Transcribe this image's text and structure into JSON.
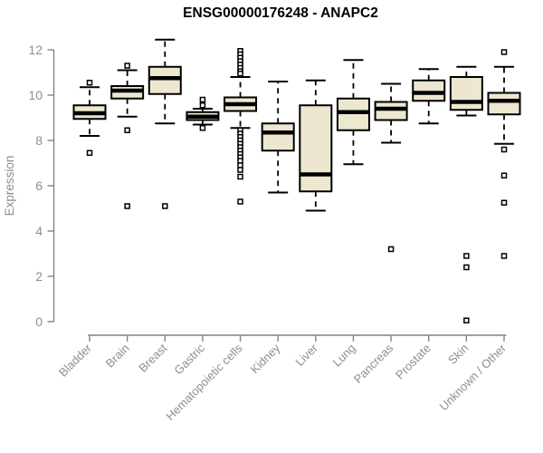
{
  "chart_data": {
    "type": "boxplot",
    "title": "ENSG00000176248 - ANAPC2",
    "ylabel": "Expression",
    "xlabel": "",
    "ylim": [
      0,
      12.5
    ],
    "yticks": [
      0,
      2,
      4,
      6,
      8,
      10,
      12
    ],
    "grid": false,
    "legend": "none",
    "categories": [
      "Bladder",
      "Brain",
      "Breast",
      "Gastric",
      "Hematopoietic cells",
      "Kidney",
      "Liver",
      "Lung",
      "Pancreas",
      "Prostate",
      "Skin",
      "Unknown / Other"
    ],
    "series": [
      {
        "category": "Bladder",
        "whisker_low": 8.2,
        "q1": 8.95,
        "median": 9.2,
        "q3": 9.55,
        "whisker_high": 10.35,
        "outliers": [
          10.55,
          7.45
        ]
      },
      {
        "category": "Brain",
        "whisker_low": 9.05,
        "q1": 9.85,
        "median": 10.2,
        "q3": 10.4,
        "whisker_high": 11.1,
        "outliers": [
          11.3,
          8.45,
          5.1
        ]
      },
      {
        "category": "Breast",
        "whisker_low": 8.75,
        "q1": 10.05,
        "median": 10.75,
        "q3": 11.25,
        "whisker_high": 12.45,
        "outliers": [
          5.1
        ]
      },
      {
        "category": "Gastric",
        "whisker_low": 8.7,
        "q1": 8.9,
        "median": 9.05,
        "q3": 9.25,
        "whisker_high": 9.4,
        "outliers": [
          9.8,
          9.55,
          8.55
        ]
      },
      {
        "category": "Hematopoietic cells",
        "whisker_low": 8.55,
        "q1": 9.3,
        "median": 9.6,
        "q3": 9.9,
        "whisker_high": 10.8,
        "outliers": [
          11.95,
          11.8,
          11.65,
          11.5,
          11.35,
          11.2,
          11.05,
          10.95,
          8.45,
          8.3,
          8.15,
          8.0,
          7.85,
          7.7,
          7.55,
          7.4,
          7.25,
          7.1,
          6.9,
          6.7,
          6.4,
          5.3
        ]
      },
      {
        "category": "Kidney",
        "whisker_low": 5.7,
        "q1": 7.55,
        "median": 8.35,
        "q3": 8.75,
        "whisker_high": 10.6,
        "outliers": []
      },
      {
        "category": "Liver",
        "whisker_low": 4.9,
        "q1": 5.75,
        "median": 6.5,
        "q3": 9.55,
        "whisker_high": 10.65,
        "outliers": []
      },
      {
        "category": "Lung",
        "whisker_low": 6.95,
        "q1": 8.45,
        "median": 9.25,
        "q3": 9.85,
        "whisker_high": 11.55,
        "outliers": []
      },
      {
        "category": "Pancreas",
        "whisker_low": 7.9,
        "q1": 8.9,
        "median": 9.4,
        "q3": 9.7,
        "whisker_high": 10.5,
        "outliers": [
          3.2
        ]
      },
      {
        "category": "Prostate",
        "whisker_low": 8.75,
        "q1": 9.75,
        "median": 10.1,
        "q3": 10.65,
        "whisker_high": 11.15,
        "outliers": []
      },
      {
        "category": "Skin",
        "whisker_low": 9.1,
        "q1": 9.35,
        "median": 9.7,
        "q3": 10.8,
        "whisker_high": 11.25,
        "outliers": [
          2.9,
          2.4,
          0.05
        ]
      },
      {
        "category": "Unknown / Other",
        "whisker_low": 7.85,
        "q1": 9.15,
        "median": 9.75,
        "q3": 10.1,
        "whisker_high": 11.25,
        "outliers": [
          11.9,
          7.6,
          6.45,
          5.25,
          2.9
        ]
      }
    ],
    "colors": {
      "box_fill": "#EDE7D0",
      "box_stroke": "#000000",
      "median": "#000000",
      "whisker": "#000000",
      "outlier_stroke": "#000000",
      "outlier_fill": "#FFFFFF",
      "axis_line": "#848484",
      "axis_text": "#8E8E8E",
      "title": "#000000",
      "background": "#FFFFFF"
    }
  }
}
